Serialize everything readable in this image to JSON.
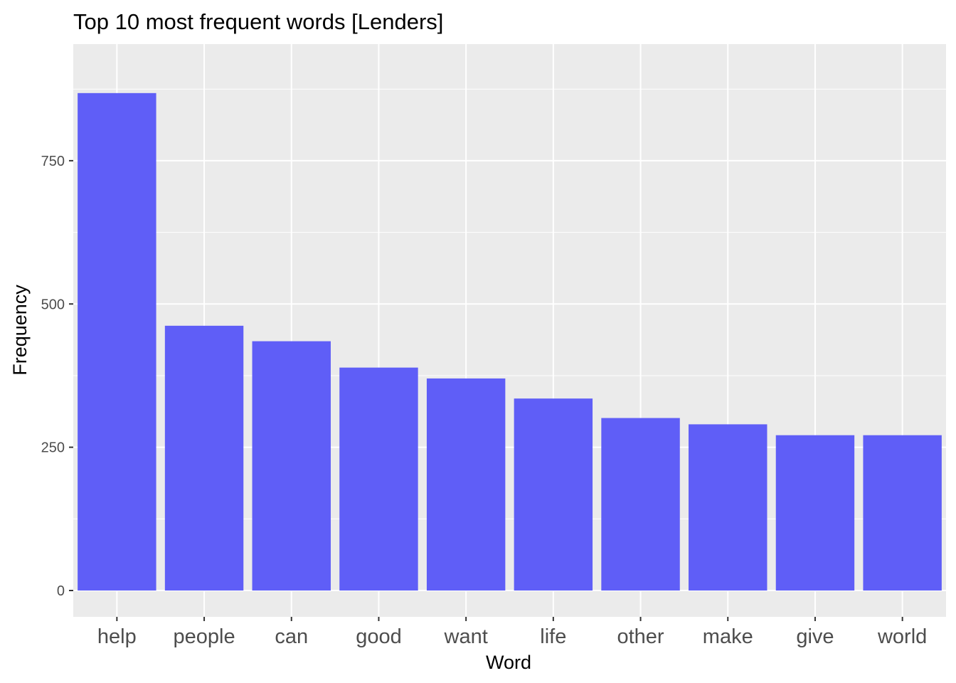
{
  "chart_data": {
    "type": "bar",
    "title": "Top 10 most frequent words [Lenders]",
    "xlabel": "Word",
    "ylabel": "Frequency",
    "categories": [
      "help",
      "people",
      "can",
      "good",
      "want",
      "life",
      "other",
      "make",
      "give",
      "world"
    ],
    "values": [
      868,
      462,
      435,
      389,
      370,
      335,
      301,
      290,
      271,
      271
    ],
    "ylim": [
      0,
      910
    ],
    "y_ticks": [
      0,
      250,
      500,
      750
    ],
    "y_tick_labels": [
      "0",
      "250",
      "500",
      "750"
    ],
    "y_minor_ticks": [
      125,
      375,
      625,
      875
    ],
    "grid": true,
    "legend": "none",
    "colors": {
      "bar": "#5f5ef7",
      "panel": "#ebebeb",
      "grid": "#ffffff",
      "background": "#ffffff",
      "axis_text": "#4d4d4d",
      "tick": "#333333"
    }
  }
}
